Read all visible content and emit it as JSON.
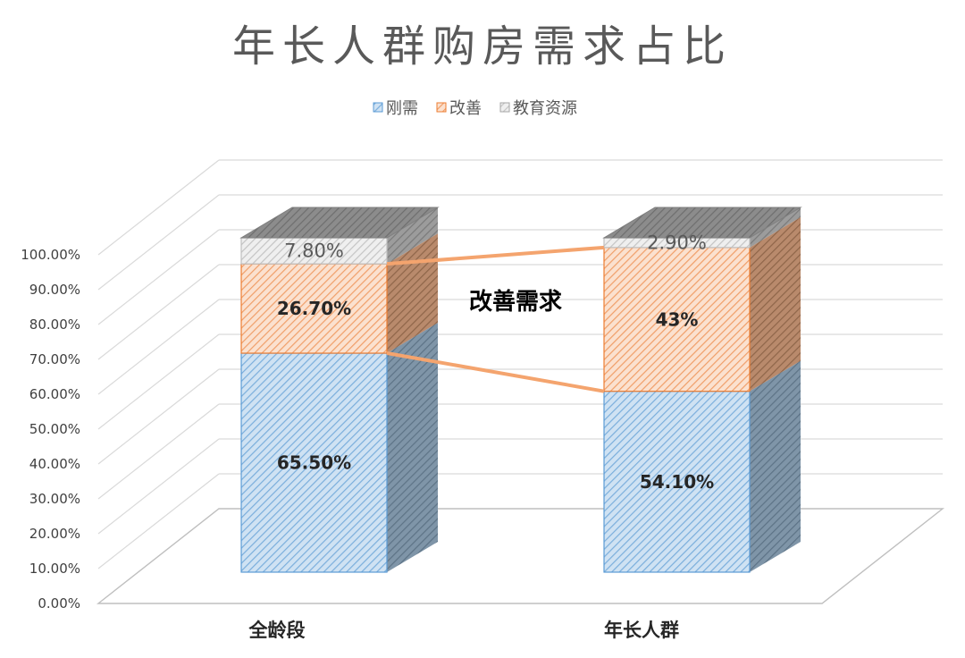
{
  "chart_data": {
    "type": "bar",
    "stacked": true,
    "style": "3d-column, percent",
    "title": "年长人群购房需求占比",
    "categories": [
      "全龄段",
      "年长人群"
    ],
    "series": [
      {
        "name": "刚需",
        "values": [
          65.5,
          54.1
        ],
        "labels": [
          "65.50%",
          "54.10%"
        ],
        "color": "#9dc3e6"
      },
      {
        "name": "改善",
        "values": [
          26.7,
          43.0
        ],
        "labels": [
          "26.70%",
          "43%"
        ],
        "color": "#f4b183"
      },
      {
        "name": "教育资源",
        "values": [
          7.8,
          2.9
        ],
        "labels": [
          "7.80%",
          "2.90%"
        ],
        "color": "#d9d9d9"
      }
    ],
    "y_ticks": [
      "0.00%",
      "10.00%",
      "20.00%",
      "30.00%",
      "40.00%",
      "50.00%",
      "60.00%",
      "70.00%",
      "80.00%",
      "90.00%",
      "100.00%"
    ],
    "ylim": [
      0,
      100
    ],
    "grid": true,
    "legend_position": "top",
    "annotation": "改善需求",
    "colors": {
      "title": "#595959",
      "axis_text": "#404040",
      "grid": "#d9d9d9",
      "connector": "#f4a46e",
      "top_face": "#808080"
    }
  }
}
